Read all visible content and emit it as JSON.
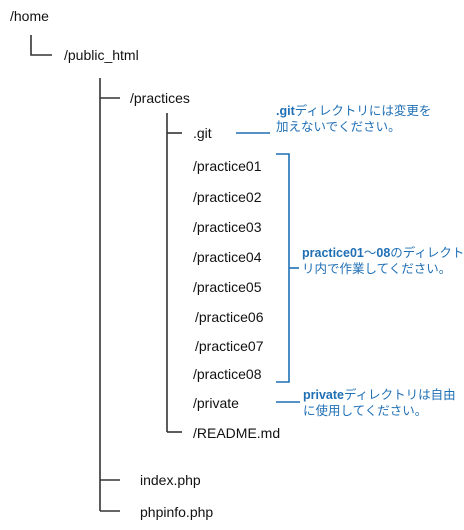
{
  "tree": {
    "root": "/home",
    "public_html": "/public_html",
    "practices": "/practices",
    "items": {
      "git": ".git",
      "practice01": "/practice01",
      "practice02": "/practice02",
      "practice03": "/practice03",
      "practice04": "/practice04",
      "practice05": "/practice05",
      "practice06": "/practice06",
      "practice07": "/practice07",
      "practice08": "/practice08",
      "private": "/private",
      "readme": "/README.md"
    },
    "index": "index.php",
    "phpinfo": "phpinfo.php"
  },
  "notes": {
    "git": {
      "bold": ".git",
      "line1_rest": "ディレクトリには変更を",
      "line2": "加えないでください。"
    },
    "practice": {
      "bold1": "practice01",
      "mid": "～",
      "bold2": "08",
      "line1_rest": "のディレクト",
      "line2": "リ内で作業してください。"
    },
    "private": {
      "bold": "private",
      "line1_rest": "ディレクトリは自由",
      "line2": "に使用してください。"
    }
  },
  "colors": {
    "tree_line": "#333333",
    "annotation": "#1f6fb5",
    "text": "#111111"
  }
}
